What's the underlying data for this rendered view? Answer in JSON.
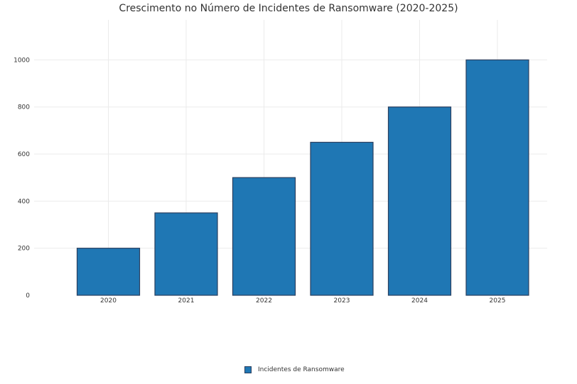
{
  "chart_data": {
    "type": "bar",
    "title": "Crescimento no Número de Incidentes de Ransomware (2020-2025)",
    "categories": [
      "2020",
      "2021",
      "2022",
      "2023",
      "2024",
      "2025"
    ],
    "series": [
      {
        "name": "Incidentes de Ransomware",
        "values": [
          200,
          350,
          500,
          650,
          800,
          1000
        ],
        "color": "#1f77b4",
        "edge_color": "#2a3f5f"
      }
    ],
    "ylim": [
      0,
      1170
    ],
    "yticks": [
      0,
      200,
      400,
      600,
      800,
      1000
    ],
    "grid": true,
    "legend_position": "bottom-center",
    "xlabel": "",
    "ylabel": ""
  }
}
